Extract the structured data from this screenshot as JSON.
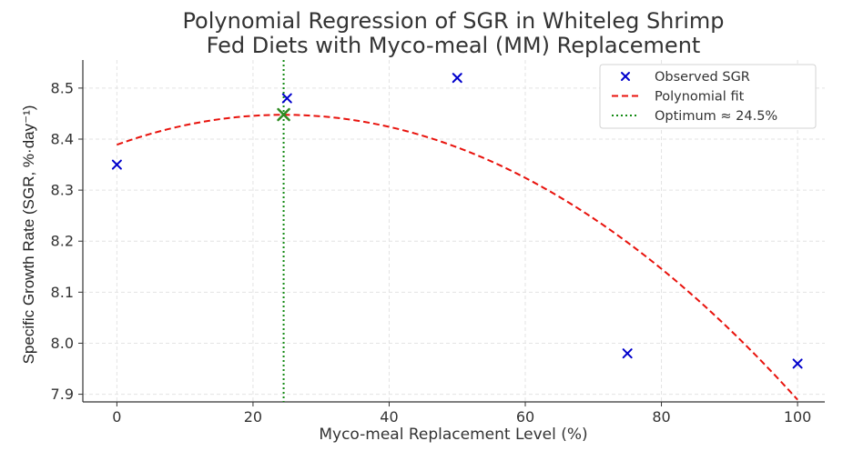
{
  "chart_data": {
    "type": "scatter",
    "title": "Polynomial Regression of SGR in Whiteleg Shrimp Fed Diets with Myco-meal (MM) Replacement",
    "title_lines": [
      "Polynomial Regression of SGR in Whiteleg Shrimp",
      "Fed Diets with Myco-meal (MM) Replacement"
    ],
    "xlabel": "Myco-meal Replacement Level (%)",
    "ylabel": "Specific Growth Rate (SGR, %·day⁻¹)",
    "xlim": [
      -5,
      104
    ],
    "ylim": [
      7.885,
      8.555
    ],
    "x_ticks": [
      0,
      20,
      40,
      60,
      80,
      100
    ],
    "y_ticks": [
      7.9,
      8.0,
      8.1,
      8.2,
      8.3,
      8.4,
      8.5
    ],
    "grid": true,
    "legend_position": "top-right",
    "series": [
      {
        "name": "Observed SGR",
        "kind": "scatter",
        "marker": "x",
        "color": "#0000cc",
        "x": [
          0,
          25,
          50,
          75,
          100
        ],
        "y": [
          8.35,
          8.48,
          8.52,
          7.98,
          7.96
        ]
      },
      {
        "name": "Polynomial fit",
        "kind": "curve",
        "style": "dashed",
        "color": "#e8120c",
        "quadratic": {
          "a": -9.79e-05,
          "b": 0.004792,
          "c": 8.389
        },
        "x_range": [
          0,
          100
        ]
      },
      {
        "name": "Optimum ≈ 24.5%",
        "kind": "vline",
        "style": "dotted",
        "color": "#138a13",
        "x": 24.5
      }
    ],
    "optimum_point": {
      "x": 24.5,
      "y": 8.448,
      "marker": "x",
      "color": "#2e8b22"
    },
    "legend": [
      {
        "label": "Observed SGR",
        "symbol": "x-marker",
        "color": "#0000cc"
      },
      {
        "label": "Polynomial fit",
        "symbol": "dashed-line",
        "color": "#e8120c"
      },
      {
        "label": "Optimum ≈ 24.5%",
        "symbol": "dotted-line",
        "color": "#138a13"
      }
    ]
  }
}
